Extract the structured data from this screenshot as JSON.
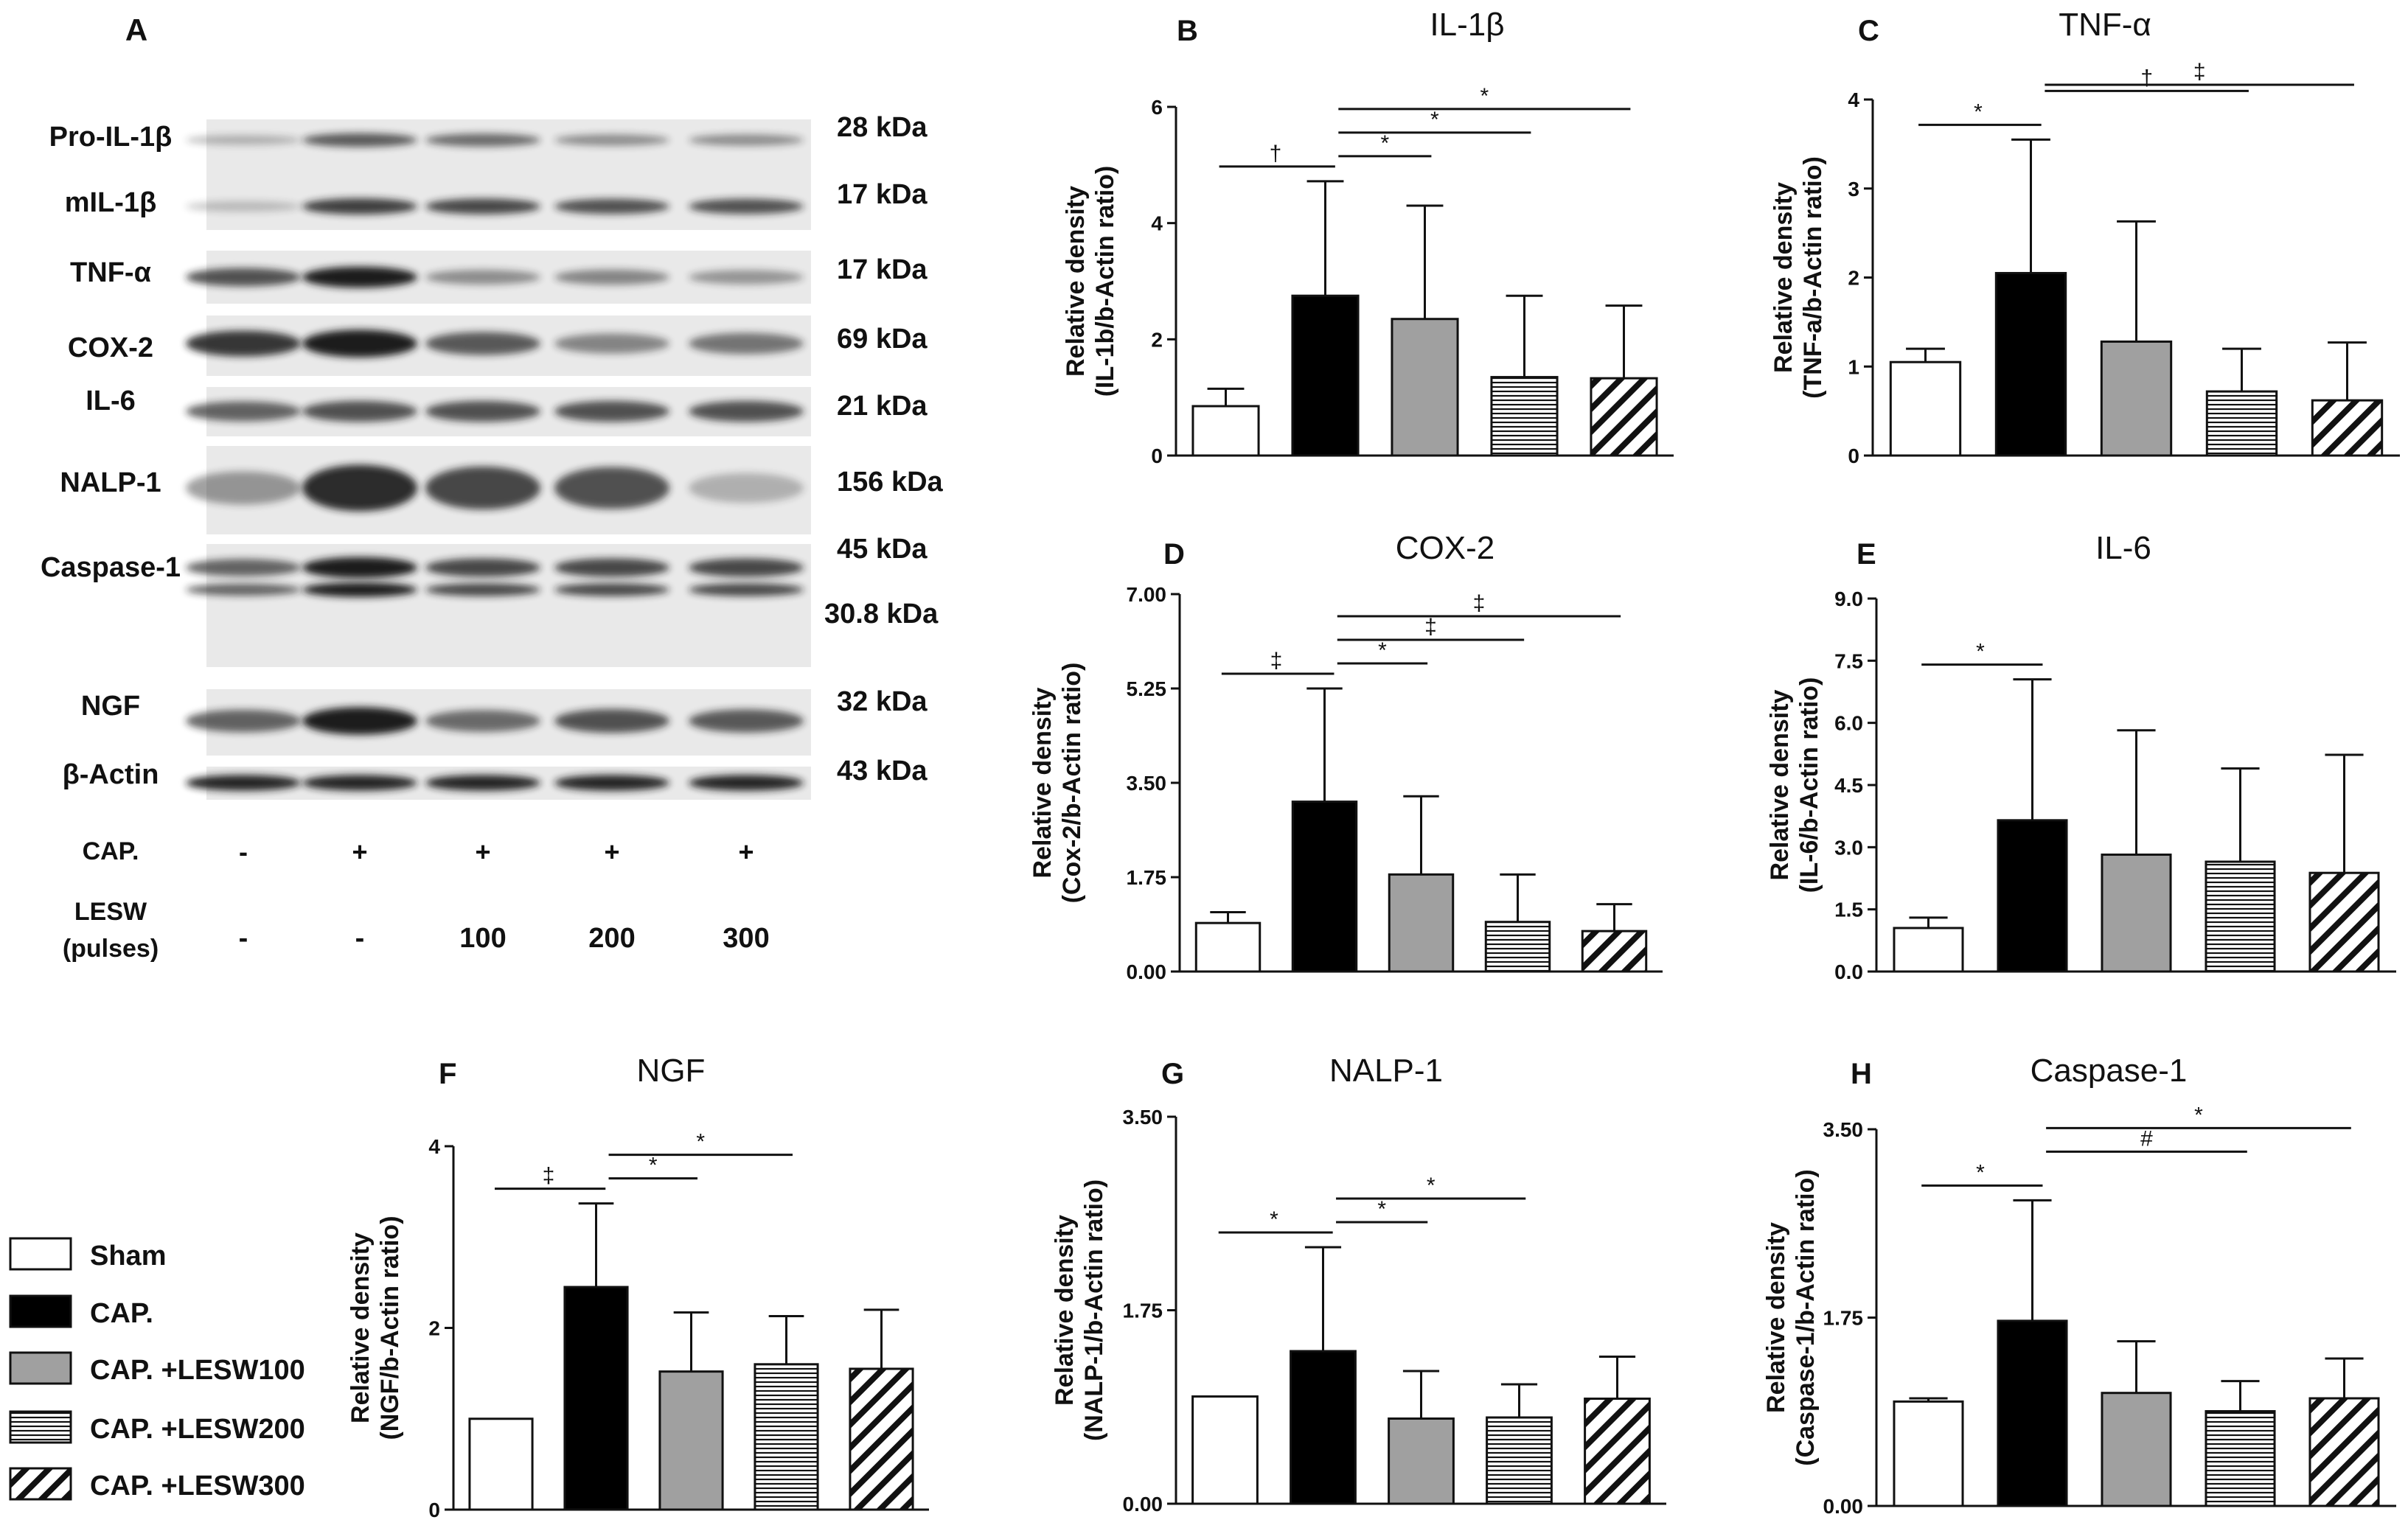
{
  "colors": {
    "sham": "#ffffff",
    "cap": "#000000",
    "lesw100": "#a0a0a0",
    "stroke": "#111111",
    "blot_bg": "#e9e9e9",
    "blot_band": "#1a1a1a"
  },
  "legend": {
    "items": [
      {
        "label": "Sham",
        "fill": "sham"
      },
      {
        "label": "CAP.",
        "fill": "cap"
      },
      {
        "label": "CAP. +LESW100",
        "fill": "gray"
      },
      {
        "label": "CAP. +LESW200",
        "fill": "hlines"
      },
      {
        "label": "CAP. +LESW300",
        "fill": "diag"
      }
    ]
  },
  "blot": {
    "panel_letter": "A",
    "rows": [
      {
        "label": "Pro-IL-1β",
        "kda": "28 kDa",
        "intensity": [
          0.15,
          0.65,
          0.55,
          0.35,
          0.35
        ]
      },
      {
        "label": "mIL-1β",
        "kda": "17 kDa",
        "intensity": [
          0.1,
          0.8,
          0.75,
          0.7,
          0.7
        ]
      },
      {
        "label": "TNF-α",
        "kda": "17 kDa",
        "intensity": [
          0.7,
          1.0,
          0.35,
          0.4,
          0.3
        ]
      },
      {
        "label": "COX-2",
        "kda": "69 kDa",
        "intensity": [
          0.85,
          1.0,
          0.65,
          0.4,
          0.5
        ]
      },
      {
        "label": "IL-6",
        "kda": "21 kDa",
        "intensity": [
          0.6,
          0.7,
          0.7,
          0.7,
          0.7
        ]
      },
      {
        "label": "NALP-1",
        "kda": "156 kDa",
        "intensity": [
          0.3,
          0.9,
          0.75,
          0.7,
          0.15
        ]
      },
      {
        "label": "Caspase-1",
        "kda": "45 kDa",
        "kda2": "30.8 kDa",
        "intensity": [
          0.6,
          1.0,
          0.75,
          0.75,
          0.75
        ]
      },
      {
        "label": "NGF",
        "kda": "32 kDa",
        "intensity": [
          0.6,
          1.0,
          0.55,
          0.7,
          0.65
        ]
      },
      {
        "label": "β-Actin",
        "kda": "43 kDa",
        "intensity": [
          0.95,
          0.95,
          0.95,
          0.95,
          0.95
        ]
      }
    ],
    "cap_label": "CAP.",
    "cap_values": [
      "-",
      "+",
      "+",
      "+",
      "+"
    ],
    "lesw_label_1": "LESW",
    "lesw_label_2": "(pulses)",
    "lesw_values": [
      "-",
      "-",
      "100",
      "200",
      "300"
    ]
  },
  "chart_data": [
    {
      "letter": "B",
      "title": "IL-1β",
      "type": "bar",
      "ylabel": [
        "Relative density",
        "(IL-1b/b-Actin ratio)"
      ],
      "categories": [
        "Sham",
        "CAP.",
        "CAP. +LESW100",
        "CAP. +LESW200",
        "CAP. +LESW300"
      ],
      "values": [
        0.85,
        2.75,
        2.35,
        1.35,
        1.33
      ],
      "errors": [
        0.3,
        1.97,
        1.95,
        1.4,
        1.25
      ],
      "ylim": [
        0,
        6
      ],
      "yticks": [
        "0",
        "2",
        "4",
        "6"
      ],
      "sig": [
        {
          "from": 0,
          "to": 1,
          "symbol": "†"
        },
        {
          "from": 1,
          "to": 2,
          "symbol": "*"
        },
        {
          "from": 1,
          "to": 3,
          "symbol": "*"
        },
        {
          "from": 1,
          "to": 4,
          "symbol": "*"
        }
      ]
    },
    {
      "letter": "C",
      "title": "TNF-α",
      "type": "bar",
      "ylabel": [
        "Relative density",
        "(TNF-a/b-Actin ratio)"
      ],
      "categories": [
        "Sham",
        "CAP.",
        "CAP. +LESW100",
        "CAP. +LESW200",
        "CAP. +LESW300"
      ],
      "values": [
        1.05,
        2.05,
        1.28,
        0.72,
        0.62
      ],
      "errors": [
        0.15,
        1.5,
        1.35,
        0.48,
        0.65
      ],
      "ylim": [
        0,
        4
      ],
      "yticks": [
        "0",
        "1",
        "2",
        "3",
        "4"
      ],
      "sig": [
        {
          "from": 0,
          "to": 1,
          "symbol": "*"
        },
        {
          "from": 1,
          "to": 3,
          "symbol": "†"
        },
        {
          "from": 1,
          "to": 4,
          "symbol": "‡"
        }
      ]
    },
    {
      "letter": "D",
      "title": "COX-2",
      "type": "bar",
      "ylabel": [
        "Relative density",
        "(Cox-2/b-Actin ratio)"
      ],
      "categories": [
        "Sham",
        "CAP.",
        "CAP. +LESW100",
        "CAP. +LESW200",
        "CAP. +LESW300"
      ],
      "values": [
        0.9,
        3.15,
        1.8,
        0.92,
        0.75
      ],
      "errors": [
        0.2,
        2.1,
        1.45,
        0.88,
        0.5
      ],
      "ylim": [
        0,
        7
      ],
      "yticks": [
        "0.00",
        "1.75",
        "3.50",
        "5.25",
        "7.00"
      ],
      "sig": [
        {
          "from": 0,
          "to": 1,
          "symbol": "‡"
        },
        {
          "from": 1,
          "to": 2,
          "symbol": "*"
        },
        {
          "from": 1,
          "to": 3,
          "symbol": "‡"
        },
        {
          "from": 1,
          "to": 4,
          "symbol": "‡"
        }
      ]
    },
    {
      "letter": "E",
      "title": "IL-6",
      "type": "bar",
      "ylabel": [
        "Relative density",
        "(IL-6/b-Actin ratio)"
      ],
      "categories": [
        "Sham",
        "CAP.",
        "CAP. +LESW100",
        "CAP. +LESW200",
        "CAP. +LESW300"
      ],
      "values": [
        1.05,
        3.65,
        2.82,
        2.65,
        2.38
      ],
      "errors": [
        0.25,
        3.4,
        3.0,
        2.25,
        2.85
      ],
      "ylim": [
        0,
        9
      ],
      "yticks": [
        "0.0",
        "1.5",
        "3.0",
        "4.5",
        "6.0",
        "7.5",
        "9.0"
      ],
      "sig": [
        {
          "from": 0,
          "to": 1,
          "symbol": "*"
        }
      ]
    },
    {
      "letter": "F",
      "title": "NGF",
      "type": "bar",
      "ylabel": [
        "Relative density",
        "(NGF/b-Actin ratio)"
      ],
      "categories": [
        "Sham",
        "CAP.",
        "CAP. +LESW100",
        "CAP. +LESW200",
        "CAP. +LESW300"
      ],
      "values": [
        1.0,
        2.45,
        1.52,
        1.6,
        1.55
      ],
      "errors": [
        0,
        0.92,
        0.65,
        0.53,
        0.65
      ],
      "ylim": [
        0,
        4
      ],
      "yticks": [
        "0",
        "2",
        "4"
      ],
      "sig": [
        {
          "from": 0,
          "to": 1,
          "symbol": "‡"
        },
        {
          "from": 1,
          "to": 2,
          "symbol": "*"
        },
        {
          "from": 1,
          "to": 3,
          "symbol": "*"
        }
      ]
    },
    {
      "letter": "G",
      "title": "NALP-1",
      "type": "bar",
      "ylabel": [
        "Relative density",
        "(NALP-1/b-Actin ratio)"
      ],
      "categories": [
        "Sham",
        "CAP.",
        "CAP. +LESW100",
        "CAP. +LESW200",
        "CAP. +LESW300"
      ],
      "values": [
        0.97,
        1.38,
        0.77,
        0.78,
        0.95
      ],
      "errors": [
        0,
        0.94,
        0.43,
        0.3,
        0.38
      ],
      "ylim": [
        0,
        3.5
      ],
      "yticks": [
        "0.00",
        "1.75",
        "3.50"
      ],
      "sig": [
        {
          "from": 0,
          "to": 1,
          "symbol": "*"
        },
        {
          "from": 1,
          "to": 2,
          "symbol": "*"
        },
        {
          "from": 1,
          "to": 3,
          "symbol": "*"
        }
      ]
    },
    {
      "letter": "H",
      "title": "Caspase-1",
      "type": "bar",
      "ylabel": [
        "Relative density",
        "(Caspase-1/b-Actin ratio)"
      ],
      "categories": [
        "Sham",
        "CAP.",
        "CAP. +LESW100",
        "CAP. +LESW200",
        "CAP. +LESW300"
      ],
      "values": [
        0.97,
        1.72,
        1.05,
        0.88,
        1.0
      ],
      "errors": [
        0.03,
        1.12,
        0.48,
        0.28,
        0.37
      ],
      "ylim": [
        0,
        3.5
      ],
      "yticks": [
        "0.00",
        "1.75",
        "3.50"
      ],
      "sig": [
        {
          "from": 0,
          "to": 1,
          "symbol": "*"
        },
        {
          "from": 1,
          "to": 3,
          "symbol": "#"
        },
        {
          "from": 1,
          "to": 4,
          "symbol": "*"
        }
      ]
    }
  ]
}
